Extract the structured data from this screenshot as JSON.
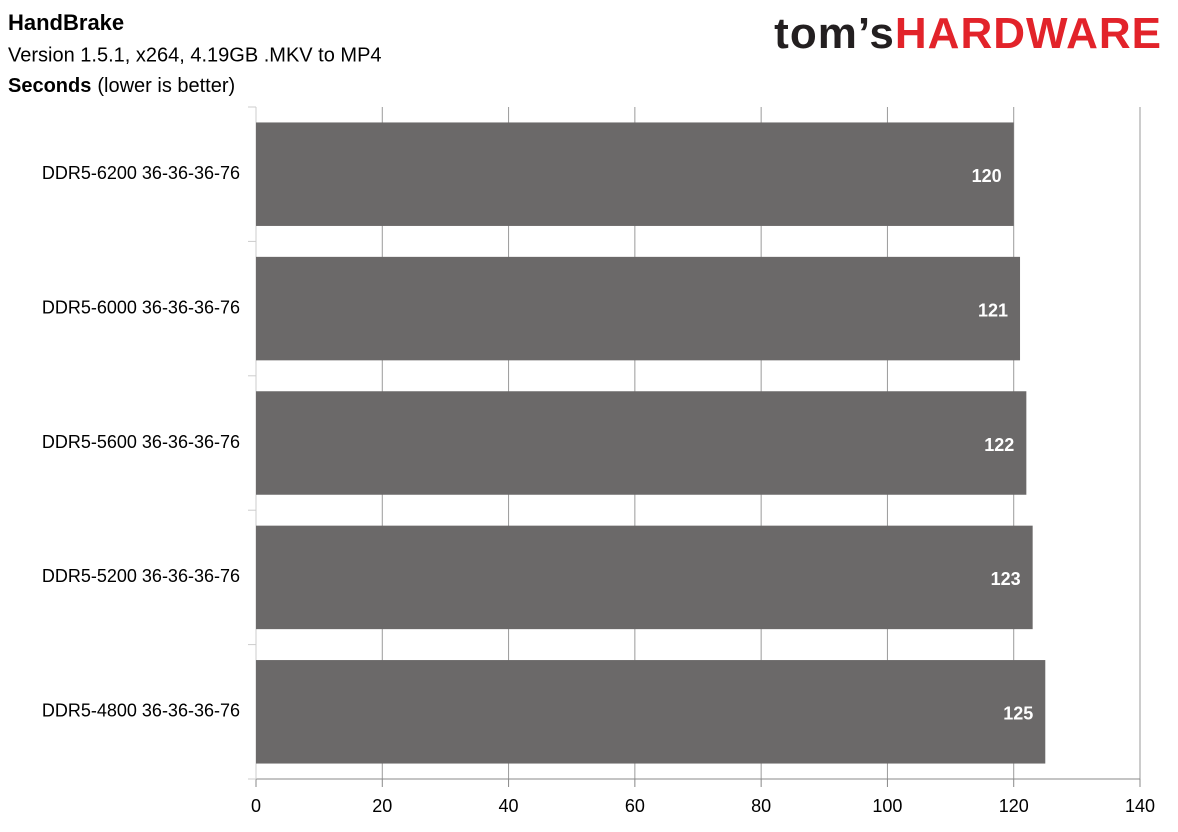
{
  "chart_data": {
    "type": "bar",
    "orientation": "horizontal",
    "title": "HandBrake",
    "subtitle": "Version 1.5.1, x264, 4.19GB .MKV to MP4",
    "xlabel": "Seconds",
    "xlabel_note": "(lower is better)",
    "categories": [
      "DDR5-6200 36-36-36-76",
      "DDR5-6000 36-36-36-76",
      "DDR5-5600 36-36-36-76",
      "DDR5-5200 36-36-36-76",
      "DDR5-4800 36-36-36-76"
    ],
    "values": [
      120,
      121,
      122,
      123,
      125
    ],
    "color": "#6b6969",
    "xlim": [
      0,
      140
    ],
    "xticks": [
      0,
      20,
      40,
      60,
      80,
      100,
      120,
      140
    ],
    "grid": true
  },
  "logo": {
    "left": "tom’s",
    "right": "HARDWARE"
  }
}
